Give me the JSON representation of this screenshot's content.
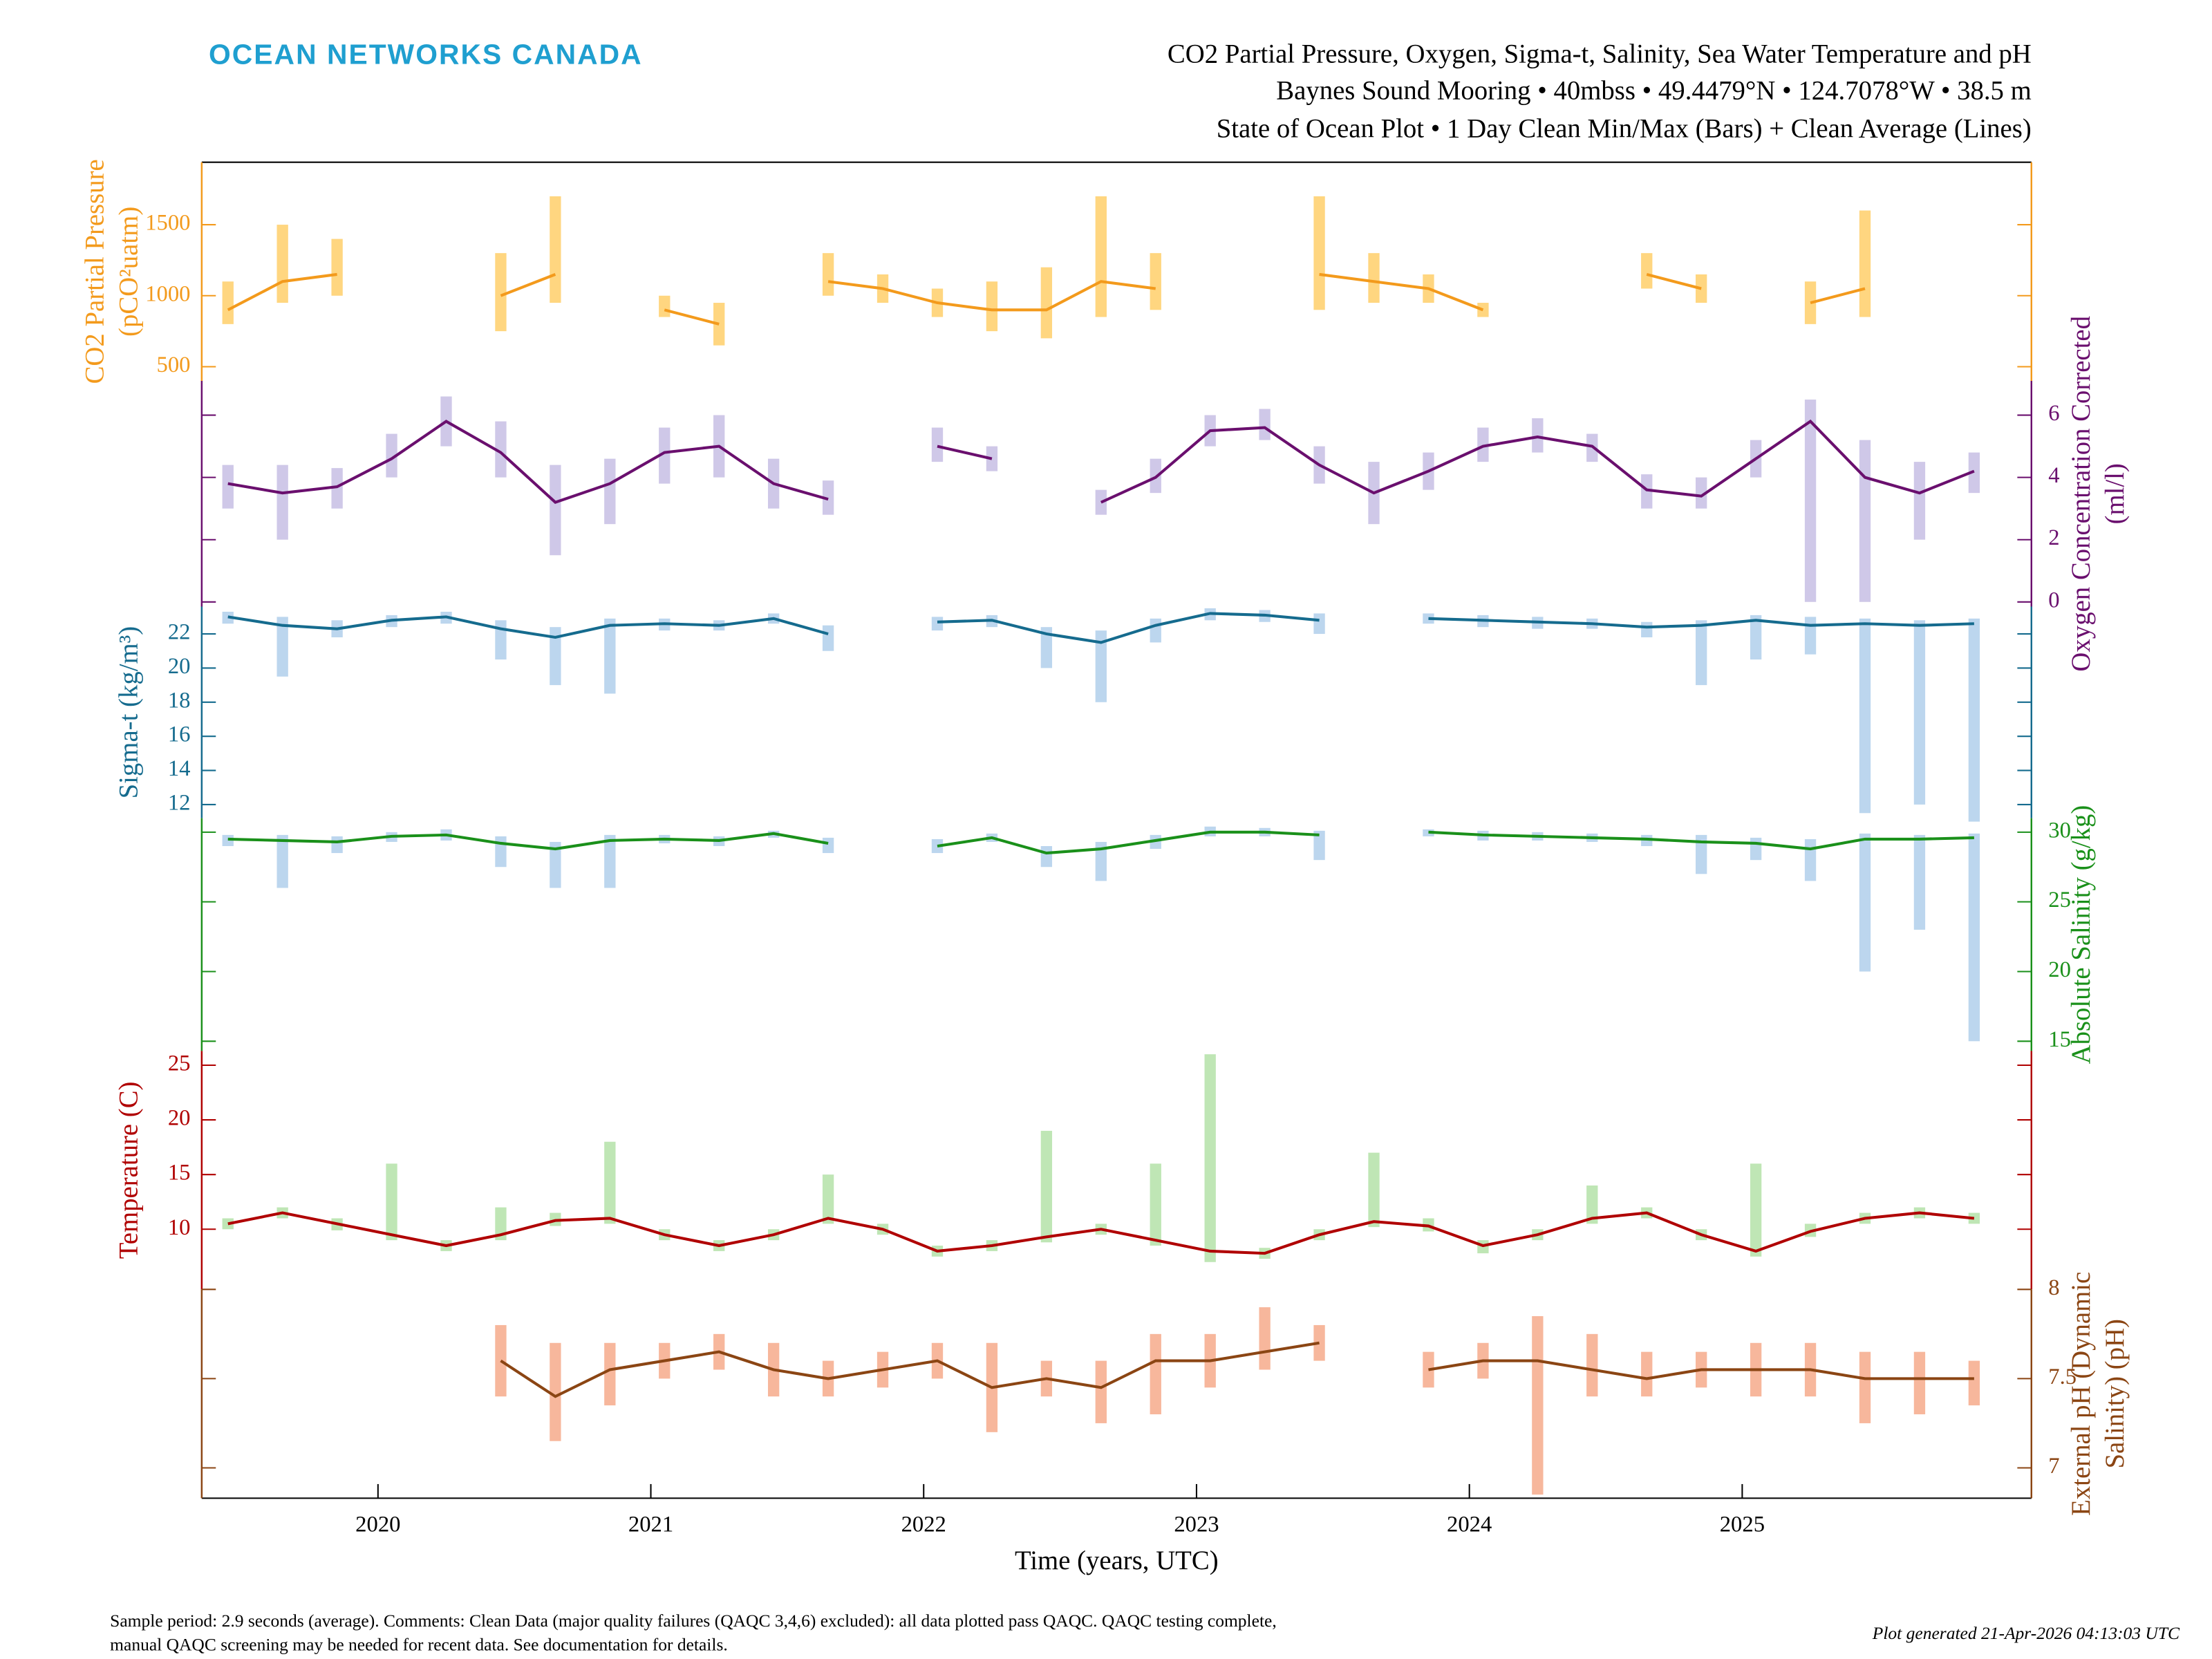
{
  "header": {
    "brand": "OCEAN NETWORKS CANADA",
    "title": [
      "CO2 Partial Pressure, Oxygen, Sigma-t, Salinity, Sea Water Temperature and pH",
      "Baynes Sound Mooring • 40mbss • 49.4479°N • 124.7078°W • 38.5 m",
      "State of Ocean Plot • 1 Day Clean Min/Max (Bars) + Clean Average (Lines)"
    ]
  },
  "footer": {
    "comments": [
      "Sample period: 2.9 seconds (average). Comments: Clean Data (major quality failures (QAQC 3,4,6) excluded): all data plotted pass QAQC. QAQC testing complete,",
      "manual QAQC screening may be needed for recent data. See documentation for details."
    ],
    "generated": "Plot generated 21-Apr-2026 04:13:03 UTC"
  },
  "chart_data": [
    {
      "type": "line",
      "ylabel": [
        "CO2 Partial Pressure",
        "(pCO²uatm)"
      ],
      "axis_side": "left",
      "color": "#f39a1c",
      "band_color": "#ffd680",
      "x": [
        2019.45,
        2019.65,
        2019.85,
        2020.05,
        2020.25,
        2020.45,
        2020.65,
        2020.85,
        2021.05,
        2021.25,
        2021.45,
        2021.65,
        2021.85,
        2022.05,
        2022.25,
        2022.45,
        2022.65,
        2022.85,
        2023.05,
        2023.25,
        2023.45,
        2023.65,
        2023.85,
        2024.05,
        2024.25,
        2024.45,
        2024.65,
        2024.85,
        2025.05,
        2025.25,
        2025.45,
        2025.65,
        2025.85
      ],
      "values": [
        900,
        1100,
        1150,
        null,
        null,
        1000,
        1150,
        null,
        900,
        800,
        null,
        1100,
        1050,
        950,
        900,
        900,
        1100,
        1050,
        null,
        null,
        1150,
        1100,
        1050,
        900,
        null,
        null,
        1150,
        1050,
        null,
        950,
        1050,
        null,
        null
      ],
      "min": [
        800,
        950,
        1000,
        null,
        null,
        750,
        950,
        null,
        850,
        650,
        null,
        1000,
        950,
        850,
        750,
        700,
        850,
        900,
        null,
        null,
        900,
        950,
        950,
        850,
        null,
        null,
        1050,
        950,
        null,
        800,
        850,
        null,
        null
      ],
      "max": [
        1100,
        1500,
        1400,
        null,
        null,
        1300,
        1700,
        null,
        1000,
        950,
        null,
        1300,
        1150,
        1050,
        1100,
        1200,
        1700,
        1300,
        null,
        null,
        1700,
        1300,
        1150,
        950,
        null,
        null,
        1300,
        1150,
        null,
        1100,
        1600,
        null,
        null
      ],
      "ylim": [
        400,
        1940
      ],
      "yticks": [
        500,
        1000,
        1500
      ]
    },
    {
      "type": "line",
      "ylabel": [
        "Oxygen Concentration Corrected",
        "(ml/l)"
      ],
      "axis_side": "right",
      "color": "#6a0f6e",
      "band_color": "#cfc8e8",
      "x": [
        2019.45,
        2019.65,
        2019.85,
        2020.05,
        2020.25,
        2020.45,
        2020.65,
        2020.85,
        2021.05,
        2021.25,
        2021.45,
        2021.65,
        2021.85,
        2022.05,
        2022.25,
        2022.45,
        2022.65,
        2022.85,
        2023.05,
        2023.25,
        2023.45,
        2023.65,
        2023.85,
        2024.05,
        2024.25,
        2024.45,
        2024.65,
        2024.85,
        2025.05,
        2025.25,
        2025.45,
        2025.65,
        2025.85
      ],
      "values": [
        3.8,
        3.5,
        3.7,
        4.6,
        5.8,
        4.8,
        3.2,
        3.8,
        4.8,
        5.0,
        3.8,
        3.3,
        null,
        5.0,
        4.6,
        null,
        3.2,
        4.0,
        5.5,
        5.6,
        4.4,
        3.5,
        4.2,
        5.0,
        5.3,
        5.0,
        3.6,
        3.4,
        4.6,
        5.8,
        4.0,
        3.5,
        4.2
      ],
      "min": [
        3.0,
        2.0,
        3.0,
        4.0,
        5.0,
        4.0,
        1.5,
        2.5,
        3.8,
        4.0,
        3.0,
        2.8,
        null,
        4.5,
        4.2,
        null,
        2.8,
        3.5,
        5.0,
        5.2,
        3.8,
        2.5,
        3.6,
        4.5,
        4.8,
        4.5,
        3.0,
        3.0,
        4.0,
        0.0,
        0.0,
        2.0,
        3.5
      ],
      "max": [
        4.4,
        4.4,
        4.3,
        5.4,
        6.6,
        5.8,
        4.4,
        4.6,
        5.6,
        6.0,
        4.6,
        3.9,
        null,
        5.6,
        5.0,
        null,
        3.6,
        4.6,
        6.0,
        6.2,
        5.0,
        4.5,
        4.8,
        5.6,
        5.9,
        5.4,
        4.1,
        4.0,
        5.2,
        6.5,
        5.2,
        4.5,
        4.8
      ],
      "ylim": [
        -0.15,
        7.1
      ],
      "yticks": [
        0,
        2,
        4,
        6
      ]
    },
    {
      "type": "line",
      "ylabel": [
        "Sigma-t (kg/m³)"
      ],
      "axis_side": "left",
      "color": "#156b8e",
      "band_color": "#bcd6ee",
      "x": [
        2019.45,
        2019.65,
        2019.85,
        2020.05,
        2020.25,
        2020.45,
        2020.65,
        2020.85,
        2021.05,
        2021.25,
        2021.45,
        2021.65,
        2021.85,
        2022.05,
        2022.25,
        2022.45,
        2022.65,
        2022.85,
        2023.05,
        2023.25,
        2023.45,
        2023.65,
        2023.85,
        2024.05,
        2024.25,
        2024.45,
        2024.65,
        2024.85,
        2025.05,
        2025.25,
        2025.45,
        2025.65,
        2025.85
      ],
      "values": [
        23.0,
        22.5,
        22.3,
        22.8,
        23.0,
        22.3,
        21.8,
        22.5,
        22.6,
        22.5,
        22.9,
        22.0,
        null,
        22.7,
        22.8,
        22.0,
        21.5,
        22.5,
        23.2,
        23.1,
        22.8,
        null,
        22.9,
        22.8,
        22.7,
        22.6,
        22.4,
        22.5,
        22.8,
        22.5,
        22.6,
        22.5,
        22.6
      ],
      "min": [
        22.6,
        19.5,
        21.8,
        22.4,
        22.6,
        20.5,
        19.0,
        18.5,
        22.2,
        22.2,
        22.6,
        21.0,
        null,
        22.2,
        22.4,
        20.0,
        18.0,
        21.5,
        22.8,
        22.7,
        22.0,
        null,
        22.6,
        22.4,
        22.3,
        22.3,
        21.8,
        19.0,
        20.5,
        20.8,
        11.5,
        12.0,
        11.0
      ],
      "max": [
        23.3,
        23.0,
        22.8,
        23.1,
        23.3,
        22.8,
        22.4,
        22.9,
        22.9,
        22.8,
        23.2,
        22.5,
        null,
        23.0,
        23.1,
        22.4,
        22.2,
        22.9,
        23.5,
        23.4,
        23.2,
        null,
        23.2,
        23.1,
        23.0,
        22.9,
        22.7,
        22.8,
        23.1,
        23.0,
        22.9,
        22.8,
        22.9
      ],
      "ylim": [
        11.2,
        23.6
      ],
      "yticks": [
        12,
        14,
        16,
        18,
        20,
        22
      ]
    },
    {
      "type": "line",
      "ylabel": [
        "Absolute Salinity (g/kg)"
      ],
      "axis_side": "right",
      "color": "#1a901a",
      "band_color": "#bcd6ee",
      "x": [
        2019.45,
        2019.65,
        2019.85,
        2020.05,
        2020.25,
        2020.45,
        2020.65,
        2020.85,
        2021.05,
        2021.25,
        2021.45,
        2021.65,
        2021.85,
        2022.05,
        2022.25,
        2022.45,
        2022.65,
        2022.85,
        2023.05,
        2023.25,
        2023.45,
        2023.65,
        2023.85,
        2024.05,
        2024.25,
        2024.45,
        2024.65,
        2024.85,
        2025.05,
        2025.25,
        2025.45,
        2025.65,
        2025.85
      ],
      "values": [
        29.5,
        29.4,
        29.3,
        29.7,
        29.8,
        29.2,
        28.8,
        29.4,
        29.5,
        29.4,
        29.9,
        29.2,
        null,
        29.0,
        29.6,
        28.5,
        28.8,
        29.4,
        30.0,
        30.0,
        29.8,
        null,
        30.0,
        29.8,
        29.7,
        29.6,
        29.5,
        29.3,
        29.2,
        28.8,
        29.5,
        29.5,
        29.6
      ],
      "min": [
        29.0,
        26.0,
        28.5,
        29.3,
        29.4,
        27.5,
        26.0,
        26.0,
        29.2,
        29.0,
        29.6,
        28.5,
        null,
        28.5,
        29.3,
        27.5,
        26.5,
        28.8,
        29.7,
        29.7,
        28.0,
        null,
        29.7,
        29.4,
        29.4,
        29.3,
        29.0,
        27.0,
        28.0,
        26.5,
        20.0,
        23.0,
        15.0
      ],
      "max": [
        29.8,
        29.8,
        29.7,
        30.0,
        30.2,
        29.7,
        29.3,
        29.8,
        29.8,
        29.7,
        30.1,
        29.6,
        null,
        29.5,
        29.9,
        29.0,
        29.3,
        29.8,
        30.4,
        30.3,
        30.1,
        null,
        30.2,
        30.1,
        30.0,
        29.9,
        29.8,
        29.8,
        29.6,
        29.5,
        29.9,
        29.8,
        29.9
      ],
      "ylim": [
        14.3,
        31
      ],
      "yticks": [
        15,
        20,
        25,
        30
      ]
    },
    {
      "type": "line",
      "ylabel": [
        "Temperature (C)"
      ],
      "axis_side": "left",
      "color": "#b00000",
      "band_color": "#bfe6b5",
      "x": [
        2019.45,
        2019.65,
        2019.85,
        2020.05,
        2020.25,
        2020.45,
        2020.65,
        2020.85,
        2021.05,
        2021.25,
        2021.45,
        2021.65,
        2021.85,
        2022.05,
        2022.25,
        2022.45,
        2022.65,
        2022.85,
        2023.05,
        2023.25,
        2023.45,
        2023.65,
        2023.85,
        2024.05,
        2024.25,
        2024.45,
        2024.65,
        2024.85,
        2025.05,
        2025.25,
        2025.45,
        2025.65,
        2025.85
      ],
      "values": [
        10.5,
        11.5,
        10.5,
        9.5,
        8.5,
        9.5,
        10.8,
        11.0,
        9.5,
        8.5,
        9.5,
        11.0,
        10.0,
        8.0,
        8.5,
        9.3,
        10.0,
        9.0,
        8.0,
        7.8,
        9.5,
        10.7,
        10.3,
        8.5,
        9.5,
        11.0,
        11.5,
        9.5,
        8.0,
        9.8,
        11.0,
        11.5,
        11.0
      ],
      "min": [
        10.0,
        11.0,
        9.9,
        9.0,
        8.0,
        9.0,
        10.3,
        10.5,
        9.0,
        8.0,
        9.0,
        10.5,
        9.5,
        7.5,
        8.0,
        8.8,
        9.5,
        8.5,
        7.0,
        7.3,
        9.0,
        10.2,
        9.8,
        7.8,
        9.0,
        10.5,
        11.0,
        9.0,
        7.5,
        9.3,
        10.5,
        11.0,
        10.5
      ],
      "max": [
        11.0,
        12.0,
        11.0,
        16.0,
        9.0,
        12.0,
        11.5,
        18.0,
        10.0,
        9.0,
        10.0,
        15.0,
        10.5,
        8.5,
        9.0,
        19.0,
        10.5,
        16.0,
        26.0,
        8.3,
        10.0,
        17.0,
        11.0,
        9.0,
        10.0,
        14.0,
        12.0,
        10.0,
        16.0,
        10.5,
        11.5,
        12.0,
        11.5
      ],
      "ylim": [
        4.5,
        26.3
      ],
      "yticks": [
        10,
        15,
        20,
        25
      ]
    },
    {
      "type": "line",
      "ylabel": [
        "External pH (Dynamic",
        "Salinity) (pH)"
      ],
      "axis_side": "right",
      "color": "#8b4513",
      "band_color": "#f7b79c",
      "x": [
        2019.45,
        2019.65,
        2019.85,
        2020.05,
        2020.25,
        2020.45,
        2020.65,
        2020.85,
        2021.05,
        2021.25,
        2021.45,
        2021.65,
        2021.85,
        2022.05,
        2022.25,
        2022.45,
        2022.65,
        2022.85,
        2023.05,
        2023.25,
        2023.45,
        2023.65,
        2023.85,
        2024.05,
        2024.25,
        2024.45,
        2024.65,
        2024.85,
        2025.05,
        2025.25,
        2025.45,
        2025.65,
        2025.85
      ],
      "values": [
        null,
        null,
        null,
        null,
        null,
        7.6,
        7.4,
        7.55,
        7.6,
        7.65,
        7.55,
        7.5,
        7.55,
        7.6,
        7.45,
        7.5,
        7.45,
        7.6,
        7.6,
        7.65,
        7.7,
        null,
        7.55,
        7.6,
        7.6,
        7.55,
        7.5,
        7.55,
        7.55,
        7.55,
        7.5,
        7.5,
        7.5
      ],
      "min": [
        null,
        null,
        null,
        null,
        null,
        7.4,
        7.15,
        7.35,
        7.5,
        7.55,
        7.4,
        7.4,
        7.45,
        7.5,
        7.2,
        7.4,
        7.25,
        7.3,
        7.45,
        7.55,
        7.6,
        null,
        7.45,
        7.5,
        6.85,
        7.4,
        7.4,
        7.45,
        7.4,
        7.4,
        7.25,
        7.3,
        7.35
      ],
      "max": [
        null,
        null,
        null,
        null,
        null,
        7.8,
        7.7,
        7.7,
        7.7,
        7.75,
        7.7,
        7.6,
        7.65,
        7.7,
        7.7,
        7.6,
        7.6,
        7.75,
        7.75,
        7.9,
        7.8,
        null,
        7.65,
        7.7,
        7.85,
        7.75,
        7.65,
        7.65,
        7.7,
        7.7,
        7.65,
        7.65,
        7.6
      ],
      "ylim": [
        6.83,
        8.0
      ],
      "yticks": [
        7,
        7.5,
        8
      ],
      "xlabel": "Time (years, UTC)",
      "xlim": [
        2019.354,
        2026.06
      ],
      "xticks": [
        2020,
        2021,
        2022,
        2023,
        2024,
        2025
      ]
    }
  ]
}
